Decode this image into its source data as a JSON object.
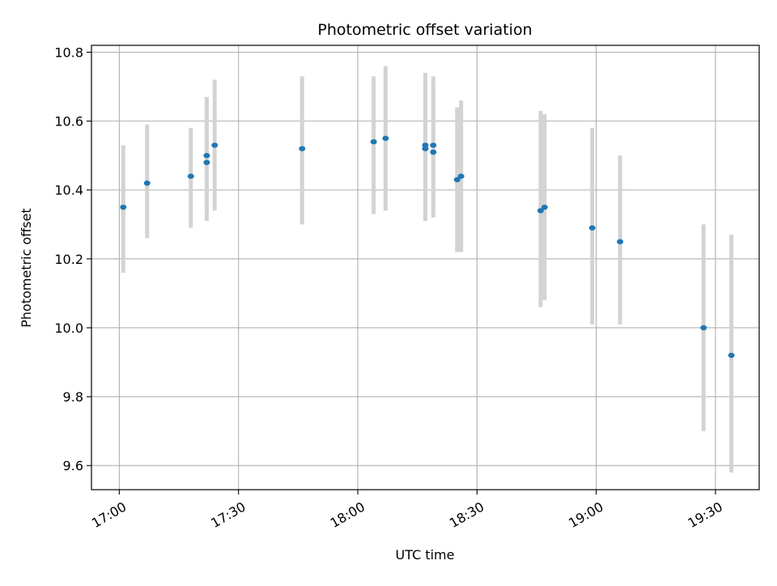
{
  "chart_data": {
    "type": "scatter",
    "title": "Photometric offset variation",
    "xlabel": "UTC time",
    "ylabel": "Photometric offset",
    "x_unit": "UTC time (HH:MM)",
    "xlim": [
      "16:53",
      "19:41"
    ],
    "ylim": [
      9.53,
      10.82
    ],
    "x_ticks": [
      "17:00",
      "17:30",
      "18:00",
      "18:30",
      "19:00",
      "19:30"
    ],
    "y_ticks": [
      9.6,
      9.8,
      10.0,
      10.2,
      10.4,
      10.6,
      10.8
    ],
    "y_tick_labels": [
      "9.6",
      "9.8",
      "10.0",
      "10.2",
      "10.4",
      "10.6",
      "10.8"
    ],
    "grid": true,
    "legend": "none",
    "colors": {
      "points": "#1f77b4",
      "errorbars": "#d3d3d3",
      "grid": "#b0b0b0"
    },
    "points": [
      {
        "x": "17:01",
        "y": 10.35,
        "lo": 10.16,
        "hi": 10.53
      },
      {
        "x": "17:07",
        "y": 10.42,
        "lo": 10.26,
        "hi": 10.59
      },
      {
        "x": "17:18",
        "y": 10.44,
        "lo": 10.29,
        "hi": 10.58
      },
      {
        "x": "17:22",
        "y": 10.48,
        "lo": 10.31,
        "hi": 10.66
      },
      {
        "x": "17:22",
        "y": 10.5,
        "lo": 10.34,
        "hi": 10.67
      },
      {
        "x": "17:24",
        "y": 10.53,
        "lo": 10.34,
        "hi": 10.72
      },
      {
        "x": "17:46",
        "y": 10.52,
        "lo": 10.3,
        "hi": 10.73
      },
      {
        "x": "18:04",
        "y": 10.54,
        "lo": 10.33,
        "hi": 10.73
      },
      {
        "x": "18:07",
        "y": 10.55,
        "lo": 10.34,
        "hi": 10.76
      },
      {
        "x": "18:17",
        "y": 10.53,
        "lo": 10.31,
        "hi": 10.74
      },
      {
        "x": "18:17",
        "y": 10.52,
        "lo": 10.32,
        "hi": 10.72
      },
      {
        "x": "18:19",
        "y": 10.51,
        "lo": 10.32,
        "hi": 10.7
      },
      {
        "x": "18:19",
        "y": 10.53,
        "lo": 10.33,
        "hi": 10.73
      },
      {
        "x": "18:25",
        "y": 10.43,
        "lo": 10.22,
        "hi": 10.64
      },
      {
        "x": "18:26",
        "y": 10.44,
        "lo": 10.22,
        "hi": 10.66
      },
      {
        "x": "18:46",
        "y": 10.34,
        "lo": 10.06,
        "hi": 10.63
      },
      {
        "x": "18:47",
        "y": 10.35,
        "lo": 10.08,
        "hi": 10.62
      },
      {
        "x": "18:59",
        "y": 10.29,
        "lo": 10.01,
        "hi": 10.58
      },
      {
        "x": "19:06",
        "y": 10.25,
        "lo": 10.01,
        "hi": 10.5
      },
      {
        "x": "19:27",
        "y": 10.0,
        "lo": 9.7,
        "hi": 10.3
      },
      {
        "x": "19:34",
        "y": 9.92,
        "lo": 9.58,
        "hi": 10.27
      }
    ]
  }
}
